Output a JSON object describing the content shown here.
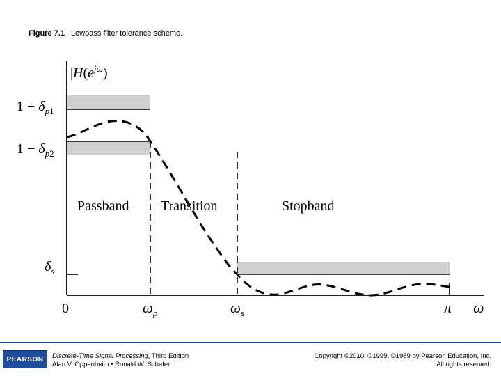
{
  "figure": {
    "number": "Figure 7.1",
    "caption": "Lowpass filter tolerance scheme."
  },
  "diagram": {
    "y_axis_label": "|H(e^{jω})|",
    "upper_tolerance_label": "1 + δ_{p1}",
    "lower_tolerance_label": "1 − δ_{p2}",
    "stopband_tolerance_label": "δ_s",
    "x_ticks": [
      "0",
      "ω_p",
      "ω_s",
      "π",
      "ω"
    ],
    "regions": [
      "Passband",
      "Transition",
      "Stopband"
    ]
  },
  "footer": {
    "publisher_logo": "PEARSON",
    "book_title": "Discrete-Time Signal Processing",
    "book_edition": ", Third Edition",
    "book_authors": "Alan V. Oppenheim • Ronald W. Schafer",
    "copyright_line1": "Copyright ©2010, ©1999, ©1989 by Pearson Education, Inc.",
    "copyright_line2": "All rights reserved."
  },
  "colors": {
    "tolerance_band": "#cfcfcf",
    "footer_rule": "#1a3f8c",
    "logo_background": "#1f4e9c"
  }
}
